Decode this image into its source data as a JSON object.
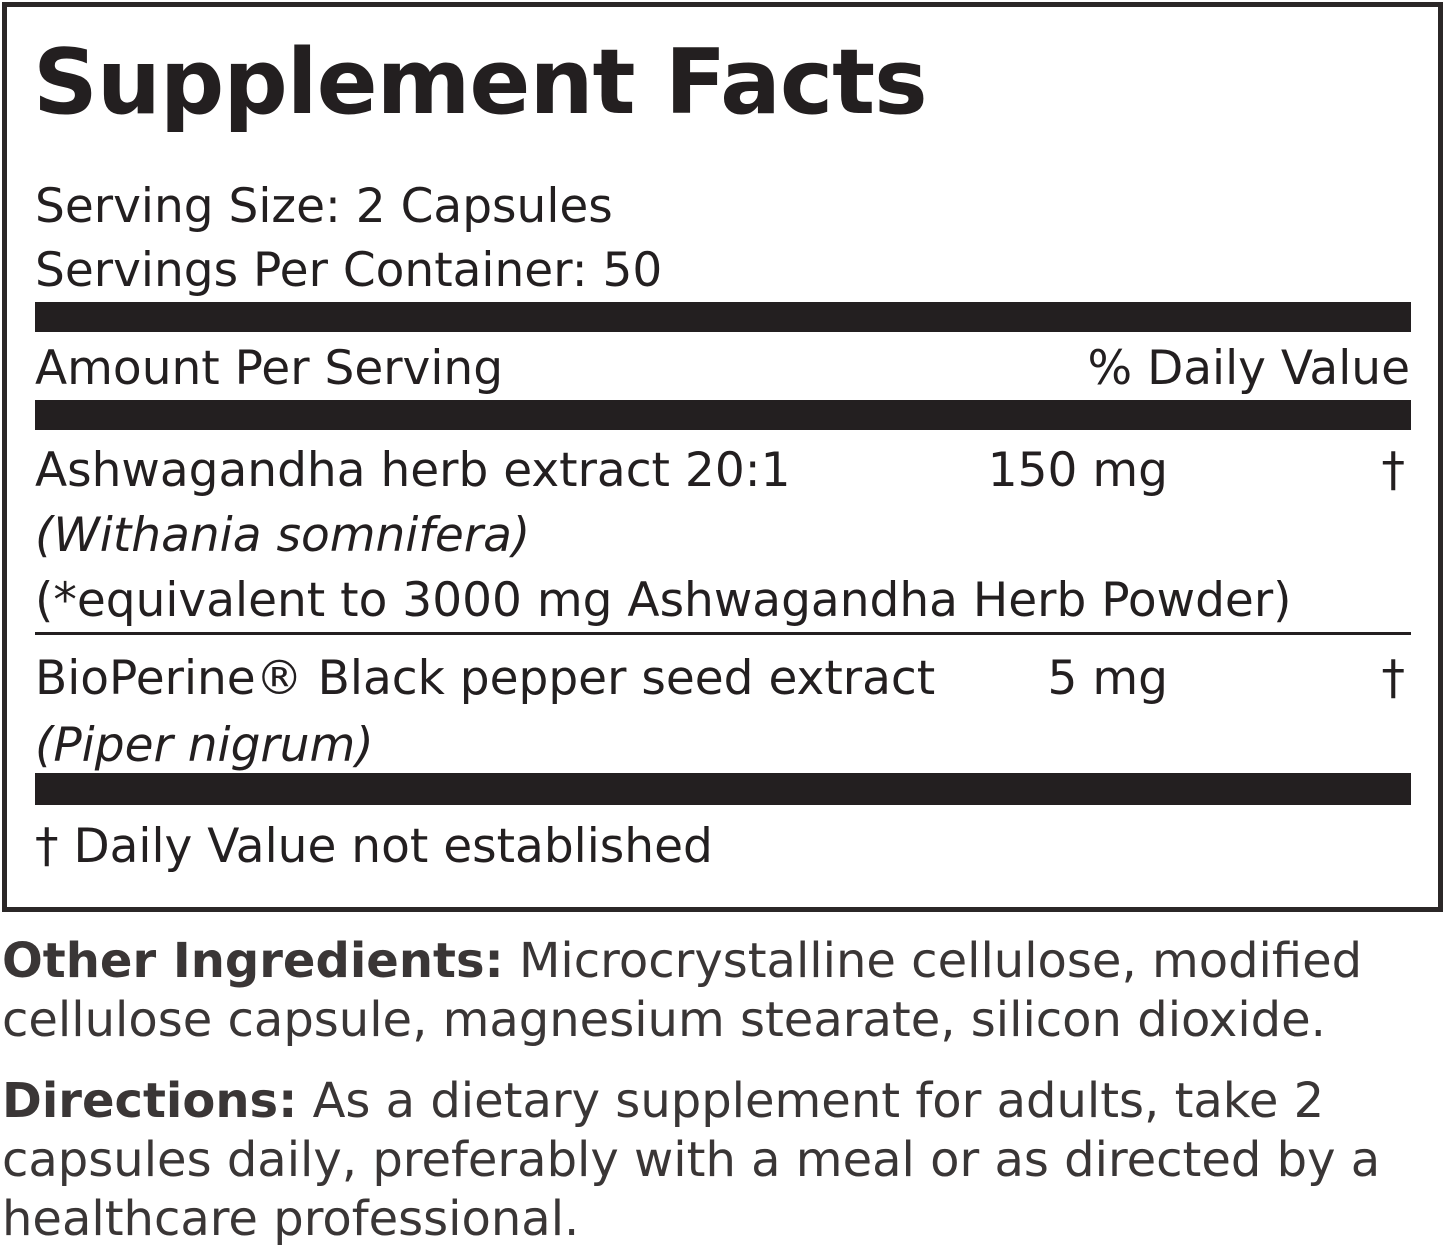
{
  "panel": {
    "title": "Supplement Facts",
    "serving_size": "Serving Size: 2 Capsules",
    "servings_per_container": "Servings Per Container: 50",
    "header": {
      "amount": "Amount Per Serving",
      "daily_value": "% Daily Value"
    },
    "ingredients": [
      {
        "name": "Ashwagandha herb extract 20:1",
        "amount": "150 mg",
        "daily_value": "†",
        "latin": "(Withania somnifera)",
        "note": "(*equivalent to 3000 mg Ashwagandha Herb Powder)"
      },
      {
        "name": "BioPerine® Black pepper seed extract",
        "amount": "5 mg",
        "daily_value": "†",
        "latin": "(Piper nigrum)"
      }
    ],
    "footnote": "† Daily Value not established"
  },
  "other_ingredients": {
    "label": "Other Ingredients:",
    "text": "Microcrystalline cellulose, modified cellulose capsule, magnesium stearate, silicon dioxide."
  },
  "directions": {
    "label": "Directions:",
    "text": "As a dietary supplement for adults, take 2 capsules daily, preferably with a meal or as directed by a healthcare professional."
  }
}
